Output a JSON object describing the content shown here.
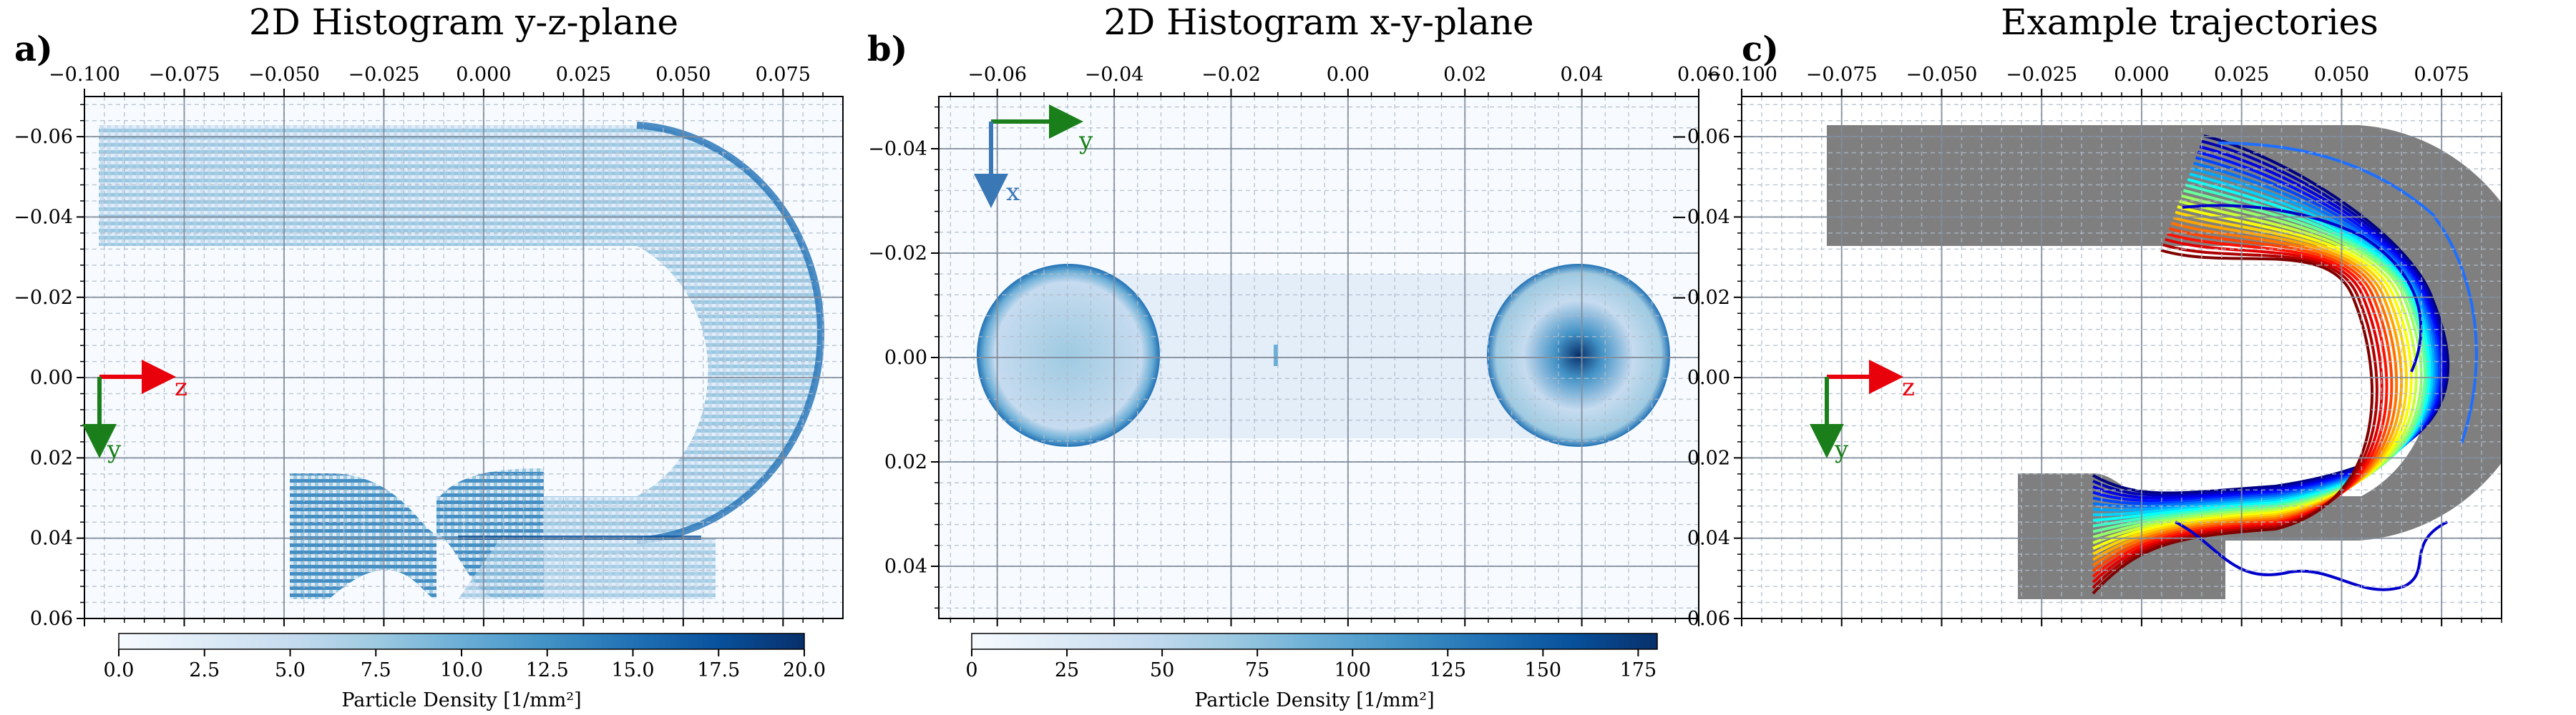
{
  "figure": {
    "panels": [
      {
        "letter": "a)",
        "title": "2D Histogram y-z-plane",
        "colorbar": {
          "ticks": [
            "0.0",
            "2.5",
            "5.0",
            "7.5",
            "10.0",
            "12.5",
            "15.0",
            "17.5",
            "20.0"
          ],
          "label": "Particle Density [1/mm²]"
        },
        "arrows": {
          "horizontal": "z",
          "vertical": "y"
        }
      },
      {
        "letter": "b)",
        "title": "2D Histogram x-y-plane",
        "colorbar": {
          "ticks": [
            "0",
            "25",
            "50",
            "75",
            "100",
            "125",
            "150",
            "175"
          ],
          "label": "Particle Density [1/mm²]"
        },
        "arrows": {
          "horizontal": "y",
          "vertical": "x"
        }
      },
      {
        "letter": "c)",
        "title": "Example trajectories",
        "arrows": {
          "horizontal": "z",
          "vertical": "y"
        }
      }
    ]
  },
  "chart_data": [
    {
      "type": "heatmap",
      "title": "2D Histogram y-z-plane",
      "xlim": [
        -0.1,
        0.09
      ],
      "ylim": [
        0.06,
        -0.07
      ],
      "xticks": [
        "−0.100",
        "−0.075",
        "−0.050",
        "−0.025",
        "0.000",
        "0.025",
        "0.050",
        "0.075"
      ],
      "yticks": [
        "−0.06",
        "−0.04",
        "−0.02",
        "0.00",
        "0.02",
        "0.04",
        "0.06"
      ],
      "xaxis_position": "top",
      "yaxis_inverted": true,
      "grid": true,
      "colormap": "Blues",
      "color_range": [
        0,
        20
      ],
      "colorbar_label": "Particle Density [1/mm²]",
      "annotations": [
        "z",
        "y"
      ]
    },
    {
      "type": "heatmap",
      "title": "2D Histogram x-y-plane",
      "xlim": [
        -0.07,
        0.06
      ],
      "ylim": [
        0.05,
        -0.05
      ],
      "xticks": [
        "−0.06",
        "−0.04",
        "−0.02",
        "0.00",
        "0.02",
        "0.04",
        "0.06"
      ],
      "yticks": [
        "−0.04",
        "−0.02",
        "0.00",
        "0.02",
        "0.04"
      ],
      "xaxis_position": "top",
      "yaxis_inverted": true,
      "grid": true,
      "colormap": "Blues",
      "color_range": [
        0,
        180
      ],
      "colorbar_label": "Particle Density [1/mm²]",
      "annotations": [
        "y",
        "x"
      ]
    },
    {
      "type": "line",
      "title": "Example trajectories",
      "xlim": [
        -0.1,
        0.09
      ],
      "ylim": [
        0.06,
        -0.07
      ],
      "xticks": [
        "−0.100",
        "−0.075",
        "−0.050",
        "−0.025",
        "0.000",
        "0.025",
        "0.050",
        "0.075"
      ],
      "yticks": [
        "−0.06",
        "−0.04",
        "−0.02",
        "0.00",
        "0.02",
        "0.04",
        "0.06"
      ],
      "xaxis_position": "top",
      "yaxis_inverted": true,
      "grid": true,
      "background_shape_color": "#7f7f7f",
      "colormap": "jet",
      "annotations": [
        "z",
        "y"
      ]
    }
  ]
}
